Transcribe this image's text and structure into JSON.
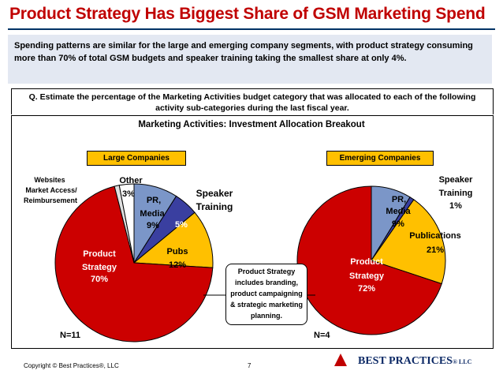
{
  "slide": {
    "title": "Product Strategy Has Biggest Share of GSM Marketing Spend",
    "summary": "Spending patterns are similar for the large and emerging company segments, with product strategy consuming more than 70% of total GSM budgets and speaker training taking the smallest share at only 4%.",
    "question": "Q. Estimate the percentage of the Marketing Activities budget category that was allocated to each of the following activity sub-categories during the last fiscal year.",
    "chart_title": "Marketing Activities: Investment Allocation Breakout",
    "callout": [
      "Product Strategy",
      "includes branding,",
      "product campaigning",
      "& strategic marketing",
      "planning."
    ],
    "copyright": "Copyright ©  Best Practices®, LLC",
    "page_number": "7",
    "logo": "BEST PRACTICES",
    "logo_suffix": "® LLC",
    "colors": {
      "title": "#c00000",
      "summary_bg": "#e3e8f2",
      "segment_label_bg": "#ffc000"
    }
  },
  "chart_data": [
    {
      "type": "pie",
      "title": "Large Companies",
      "n_label": "N=11",
      "slices": [
        {
          "label": "PR, Media",
          "value": 9,
          "value_label": "9%",
          "color": "#7b96c8"
        },
        {
          "label": "Speaker Training",
          "value": 5,
          "value_label": "5%",
          "color": "#3a3fa0"
        },
        {
          "label": "Pubs",
          "value": 12,
          "value_label": "12%",
          "color": "#ffc000"
        },
        {
          "label": "Product Strategy",
          "value": 70,
          "value_label": "70%",
          "color": "#cc0000"
        },
        {
          "label": "Websites Market Access/ Reimbursement",
          "value": 1,
          "value_label": "",
          "color": "#e0e0e0"
        },
        {
          "label": "Other",
          "value": 3,
          "value_label": "3%",
          "color": "#ffffff"
        }
      ]
    },
    {
      "type": "pie",
      "title": "Emerging Companies",
      "n_label": "N=4",
      "slices": [
        {
          "label": "PR, Media",
          "value": 9,
          "value_label": "9%",
          "color": "#7b96c8"
        },
        {
          "label": "Speaker Training",
          "value": 1,
          "value_label": "1%",
          "color": "#3a3fa0"
        },
        {
          "label": "Publications",
          "value": 21,
          "value_label": "21%",
          "color": "#ffc000"
        },
        {
          "label": "Product Strategy",
          "value": 72,
          "value_label": "72%",
          "color": "#cc0000"
        }
      ]
    }
  ]
}
